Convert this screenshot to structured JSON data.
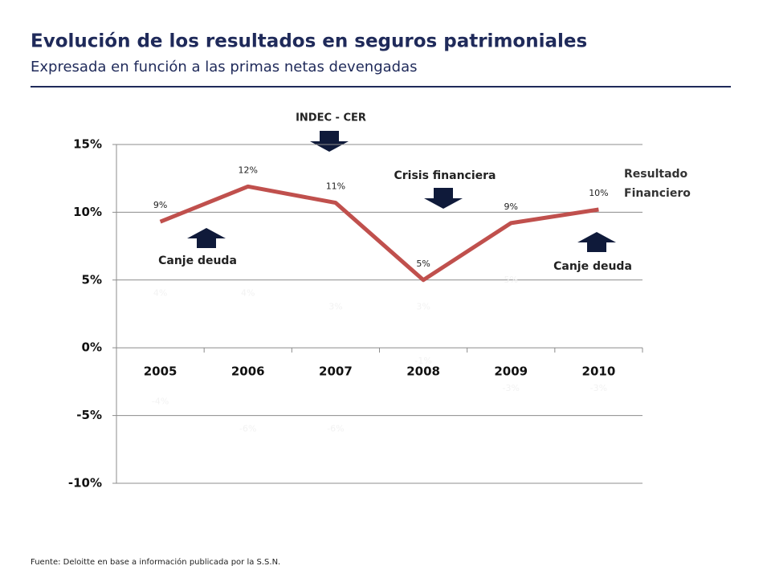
{
  "header": {
    "title": "Evolución de los resultados en seguros patrimoniales",
    "subtitle": "Expresada en función a las primas netas devengadas"
  },
  "chart_data": {
    "type": "line",
    "categories": [
      "2005",
      "2006",
      "2007",
      "2008",
      "2009",
      "2010"
    ],
    "series": [
      {
        "name": "Resultado Financiero",
        "color": "#c0504d",
        "values": [
          9.3,
          11.9,
          10.7,
          5.0,
          9.2,
          10.2
        ],
        "value_labels": [
          "9%",
          "12%",
          "11%",
          "5%",
          "9%",
          "10%"
        ]
      },
      {
        "color": "#f2f2f2",
        "values": [
          4,
          4,
          3,
          3,
          5,
          null
        ],
        "value_labels": [
          "4%",
          "4%",
          "3%",
          "3%",
          "5%",
          null
        ]
      },
      {
        "color": "#f2f2f2",
        "values": [
          -4,
          -6,
          -6,
          -1,
          -3,
          -3
        ],
        "value_labels": [
          "-4%",
          "-6%",
          "-6%",
          "-1%",
          "-3%",
          "-3%"
        ]
      }
    ],
    "ylim": [
      -10,
      15
    ],
    "yticks": [
      {
        "value": -10,
        "label": "-10%"
      },
      {
        "value": -5,
        "label": "-5%"
      },
      {
        "value": 0,
        "label": "0%"
      },
      {
        "value": 5,
        "label": "5%"
      },
      {
        "value": 10,
        "label": "10%"
      },
      {
        "value": 15,
        "label": "15%"
      }
    ],
    "grid": true,
    "annotations": [
      "INDEC - CER",
      "Crisis financiera",
      "Canje deuda",
      "Canje deuda"
    ]
  },
  "footer": {
    "source": "Fuente: Deloitte en base a  información publicada por la S.S.N."
  }
}
